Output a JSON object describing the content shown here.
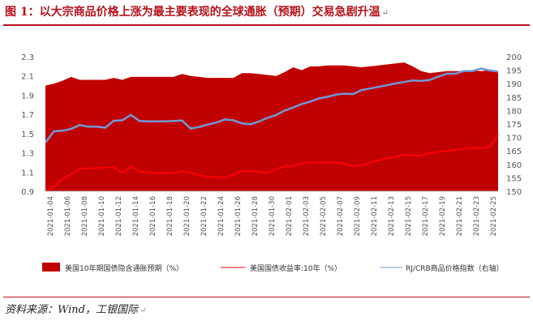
{
  "title": "图 1：以大宗商品价格上涨为最主要表现的全球通胀（预期）交易急剧升温",
  "source": "资料来源：Wind，工银国际",
  "return_mark": "↵",
  "colors": {
    "area": "#c00000",
    "yield": "#ff0000",
    "crb": "#7299d6",
    "title": "#b5121b",
    "axis_text": "#555555"
  },
  "chart_data": {
    "type": "area+line",
    "title": "",
    "xlabel": "",
    "left_axis": {
      "ylim": [
        0.9,
        2.3
      ],
      "ticks": [
        "0.9",
        "1.1",
        "1.3",
        "1.5",
        "1.7",
        "1.9",
        "2.1",
        "2.3"
      ]
    },
    "right_axis": {
      "ylim": [
        150,
        200
      ],
      "ticks": [
        "150",
        "155",
        "160",
        "165",
        "170",
        "175",
        "180",
        "185",
        "190",
        "195",
        "200"
      ]
    },
    "x_tick_labels": [
      "2021-01-04",
      "2021-01-06",
      "2021-01-08",
      "2021-01-10",
      "2021-01-12",
      "2021-01-14",
      "2021-01-16",
      "2021-01-18",
      "2021-01-20",
      "2021-01-22",
      "2021-01-24",
      "2021-01-26",
      "2021-01-28",
      "2021-01-30",
      "2021-02-01",
      "2021-02-03",
      "2021-02-05",
      "2021-02-07",
      "2021-02-09",
      "2021-02-11",
      "2021-02-13",
      "2021-02-15",
      "2021-02-17",
      "2021-02-19",
      "2021-02-21",
      "2021-02-23",
      "2021-02-25"
    ],
    "series": [
      {
        "name": "美国10年期国债隐含通胀预期（%）",
        "kind": "area",
        "axis": "left",
        "values": [
          2.0,
          2.02,
          2.05,
          2.09,
          2.06,
          2.06,
          2.06,
          2.06,
          2.08,
          2.06,
          2.09,
          2.09,
          2.09,
          2.09,
          2.09,
          2.09,
          2.12,
          2.1,
          2.09,
          2.08,
          2.08,
          2.08,
          2.08,
          2.13,
          2.13,
          2.12,
          2.11,
          2.1,
          2.14,
          2.19,
          2.16,
          2.2,
          2.2,
          2.21,
          2.21,
          2.21,
          2.2,
          2.19,
          2.2,
          2.21,
          2.22,
          2.23,
          2.24,
          2.2,
          2.15,
          2.13,
          2.14,
          2.15,
          2.15,
          2.15,
          2.16,
          2.15,
          2.16,
          2.14
        ]
      },
      {
        "name": "美国国债收益率:10年（%）",
        "kind": "line",
        "axis": "left",
        "values": [
          0.91,
          0.95,
          1.03,
          1.08,
          1.13,
          1.14,
          1.14,
          1.15,
          1.15,
          1.09,
          1.16,
          1.1,
          1.1,
          1.09,
          1.09,
          1.09,
          1.11,
          1.09,
          1.07,
          1.05,
          1.05,
          1.04,
          1.07,
          1.11,
          1.11,
          1.1,
          1.09,
          1.13,
          1.16,
          1.16,
          1.19,
          1.2,
          1.2,
          1.2,
          1.2,
          1.19,
          1.16,
          1.17,
          1.2,
          1.22,
          1.24,
          1.26,
          1.28,
          1.27,
          1.27,
          1.3,
          1.31,
          1.32,
          1.33,
          1.34,
          1.35,
          1.35,
          1.36,
          1.49
        ]
      },
      {
        "name": "RJ/CRB商品价格指数（右轴）",
        "kind": "line",
        "axis": "right",
        "values": [
          168.1,
          172.3,
          172.5,
          173.2,
          174.6,
          174.0,
          174.0,
          173.6,
          176.2,
          176.4,
          178.4,
          176.1,
          176.0,
          176.0,
          176.0,
          176.1,
          176.3,
          173.3,
          173.9,
          174.8,
          175.5,
          176.7,
          176.4,
          175.2,
          174.9,
          175.9,
          177.3,
          178.3,
          180.0,
          181.1,
          182.4,
          183.3,
          184.5,
          185.1,
          185.9,
          186.3,
          186.1,
          187.6,
          188.2,
          188.8,
          189.4,
          190.1,
          190.6,
          191.2,
          191.0,
          191.4,
          192.6,
          193.7,
          193.7,
          194.7,
          194.7,
          195.6,
          194.9,
          194.5
        ]
      }
    ],
    "legend": [
      "美国10年期国债隐含通胀预期（%）",
      "美国国债收益率:10年（%）",
      "RJ/CRB商品价格指数（右轴）"
    ],
    "legend_position": "bottom",
    "grid": false
  }
}
